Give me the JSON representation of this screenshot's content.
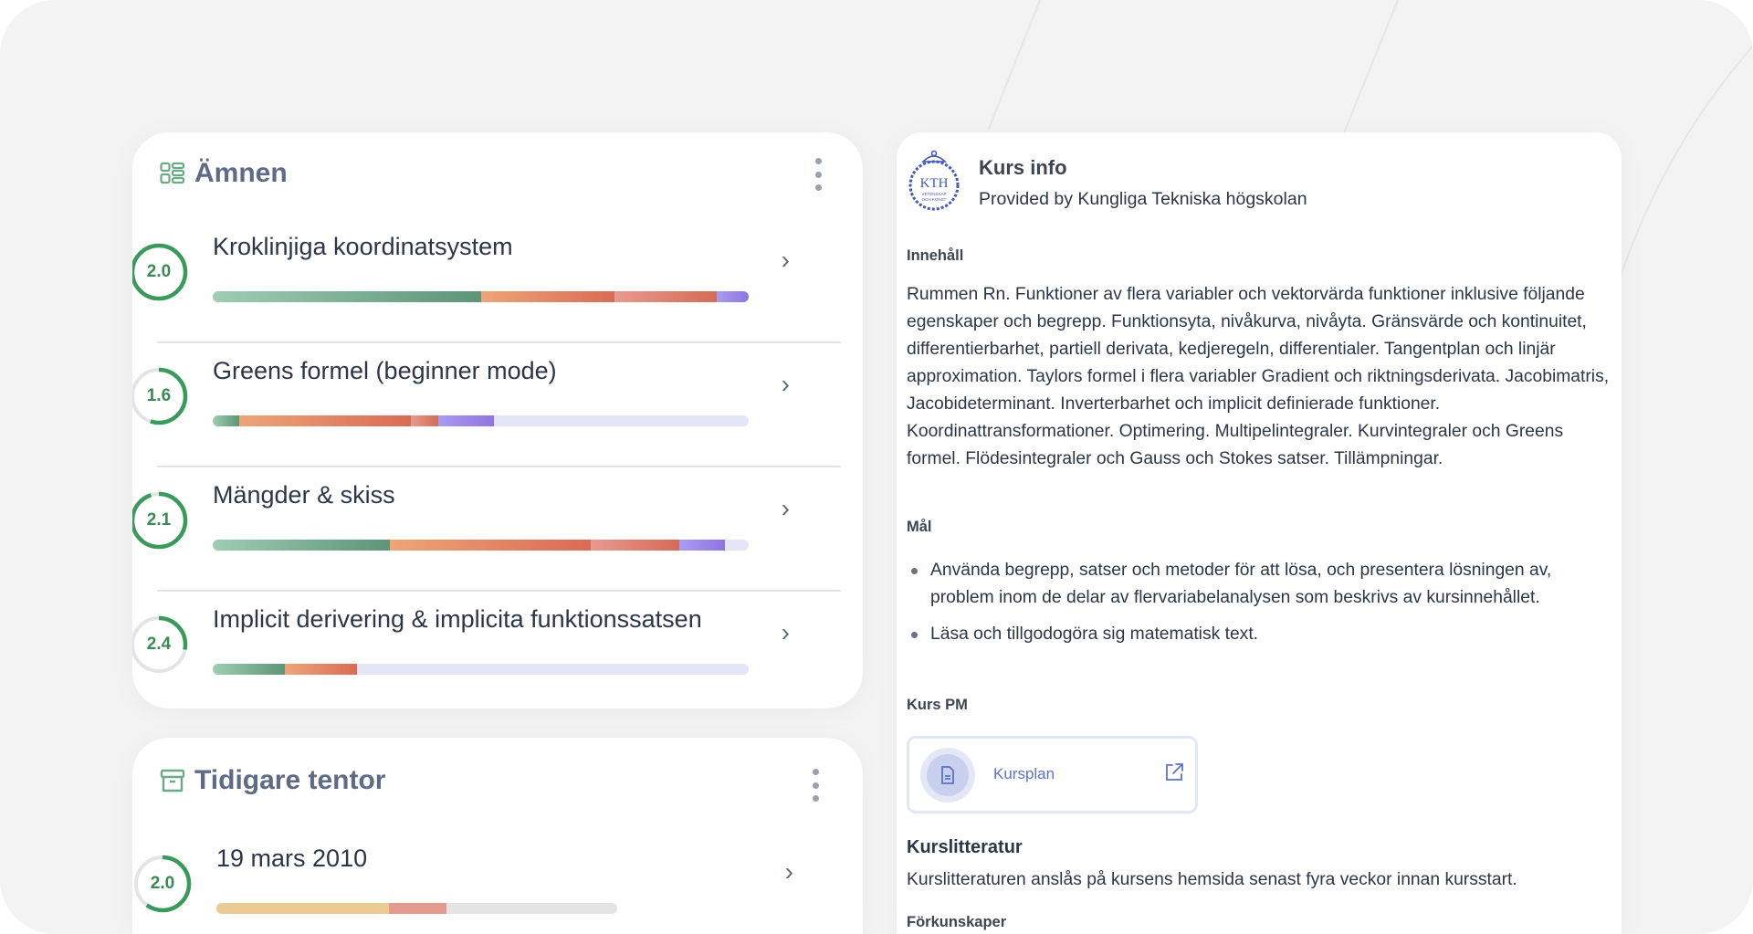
{
  "amnen": {
    "title": "Ämnen",
    "icon": "grid-list-icon",
    "items": [
      {
        "score": "2.0",
        "progress": 1.0,
        "name": "Kroklinjiga koordinatsystem",
        "segments": [
          0.5,
          0.25,
          0.19,
          0.06
        ]
      },
      {
        "score": "1.6",
        "progress": 0.55,
        "name": "Greens formel (beginner mode)",
        "segments": [
          0.05,
          0.32,
          0.05,
          0.105
        ]
      },
      {
        "score": "2.1",
        "progress": 0.95,
        "name": "Mängder & skiss",
        "segments": [
          0.33,
          0.375,
          0.165,
          0.085
        ]
      },
      {
        "score": "2.4",
        "progress": 0.28,
        "name": "Implicit derivering & implicita funktionssatsen",
        "segments": [
          0.135,
          0.135,
          0,
          0
        ]
      }
    ]
  },
  "tentor": {
    "title": "Tidigare tentor",
    "icon": "archive-icon",
    "items": [
      {
        "score": "2.0",
        "progress": 0.6,
        "name": "19 mars 2010",
        "segments": [
          0.43,
          0.145
        ]
      }
    ]
  },
  "info": {
    "title": "Kurs info",
    "subtitle": "Provided by Kungliga Tekniska högskolan",
    "logo_text": "KTH VETENSKAP OCH KONST",
    "content_heading": "Innehåll",
    "content": "Rummen Rn. Funktioner av flera variabler och vektorvärda funktioner inklusive följande egenskaper och begrepp. Funktionsyta, nivåkurva, nivåyta. Gränsvärde och kontinuitet, differentierbarhet, partiell derivata, kedjeregeln, differentialer. Tangentplan och linjär approximation. Taylors formel i flera variabler Gradient och riktningsderivata. Jacobimatris, Jacobideterminant. Inverterbarhet och implicit definierade funktioner. Koordinattransformationer. Optimering. Multipelintegraler. Kurvintegraler och Greens formel. Flödesintegraler och Gauss och Stokes satser. Tillämpningar.",
    "goals_heading": "Mål",
    "goals": [
      "Använda begrepp, satser och metoder för att lösa, och presentera lösningen av, problem inom de delar av flervariabelanalysen som beskrivs av kursinnehållet.",
      "Läsa och tillgodogöra sig matematisk text."
    ],
    "pm_heading": "Kurs PM",
    "pm_link": "Kursplan",
    "literature_heading": "Kurslitteratur",
    "literature": "Kurslitteraturen anslås på kursens hemsida senast fyra veckor innan kursstart.",
    "prereq_heading": "Förkunskaper"
  },
  "colors": {
    "ring": "#3a9a5b",
    "ring_track": "#e2e4e8",
    "topic_segments": [
      [
        "#9fcdb3",
        "#5e9478"
      ],
      [
        "#eda578",
        "#d96b55"
      ],
      [
        "#e79a90",
        "#d56b57"
      ],
      [
        "#a99cf0",
        "#8f74e0"
      ]
    ],
    "exam_segments": [
      [
        "#ecca94",
        "#ecca94"
      ],
      [
        "#e59a90",
        "#e59a90"
      ]
    ],
    "exam_track": "#e4e4e4",
    "accent": "#5b72c9"
  }
}
